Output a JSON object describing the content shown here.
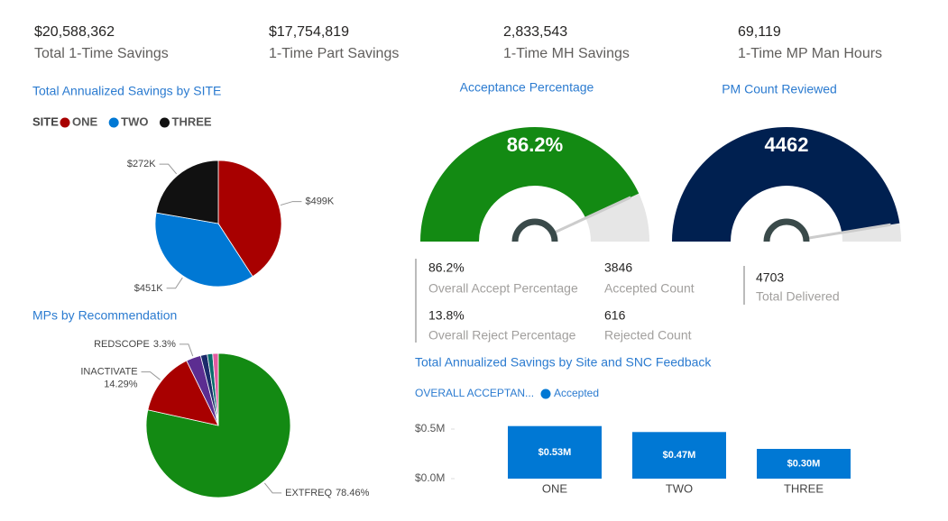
{
  "kpis": [
    {
      "value": "$20,588,362",
      "label": "Total 1-Time Savings"
    },
    {
      "value": "$17,754,819",
      "label": "1-Time Part Savings"
    },
    {
      "value": "2,833,543",
      "label": "1-Time MH Savings"
    },
    {
      "value": "69,119",
      "label": "1-Time MP Man Hours"
    }
  ],
  "chart_data": [
    {
      "type": "pie",
      "title": "Total Annualized Savings by SITE",
      "legend_title": "SITE",
      "categories": [
        "ONE",
        "TWO",
        "THREE"
      ],
      "values": [
        499000,
        451000,
        272000
      ],
      "value_labels": [
        "$499K",
        "$451K",
        "$272K"
      ],
      "colors": [
        "#a80000",
        "#0078d4",
        "#111111"
      ]
    },
    {
      "type": "gauge",
      "title": "Acceptance Percentage",
      "value": 86.2,
      "value_label": "86.2%",
      "ylim": [
        0,
        100
      ],
      "color": "#138a13"
    },
    {
      "type": "gauge",
      "title": "PM Count Reviewed",
      "value": 4462,
      "ylim": [
        0,
        4703
      ],
      "color": "#002050"
    },
    {
      "type": "pie",
      "title": "MPs by Recommendation",
      "categories": [
        "EXTFREQ",
        "INACTIVATE",
        "REDSCOPE",
        null,
        null,
        null
      ],
      "values": [
        78.46,
        14.29,
        3.3,
        1.5,
        1.2,
        1.25
      ],
      "value_labels": [
        "78.46%",
        "14.29%",
        "3.3%",
        null,
        null,
        null
      ],
      "colors": [
        "#138a13",
        "#a80000",
        "#5c2d91",
        "#1b2a6b",
        "#0a6d6d",
        "#e25aa0"
      ]
    },
    {
      "type": "bar",
      "title": "Total Annualized Savings by Site and SNC Feedback",
      "legend_title": "OVERALL ACCEPTAN...",
      "categories": [
        "ONE",
        "TWO",
        "THREE"
      ],
      "series": [
        {
          "name": "Accepted",
          "color": "#0078d4",
          "values": [
            530000,
            470000,
            300000
          ]
        }
      ],
      "value_labels": [
        "$0.53M",
        "$0.47M",
        "$0.30M"
      ],
      "ylim": [
        0,
        600000
      ],
      "yticks": [
        {
          "value": 0,
          "label": "$0.0M"
        },
        {
          "value": 500000,
          "label": "$0.5M"
        }
      ]
    }
  ],
  "gauge_stats": [
    {
      "value": "86.2%",
      "label": "Overall Accept Percentage"
    },
    {
      "value": "3846",
      "label": "Accepted Count"
    },
    {
      "value": "13.8%",
      "label": "Overall Reject Percentage"
    },
    {
      "value": "616",
      "label": "Rejected Count"
    },
    {
      "value": "4703",
      "label": "Total Delivered"
    }
  ]
}
